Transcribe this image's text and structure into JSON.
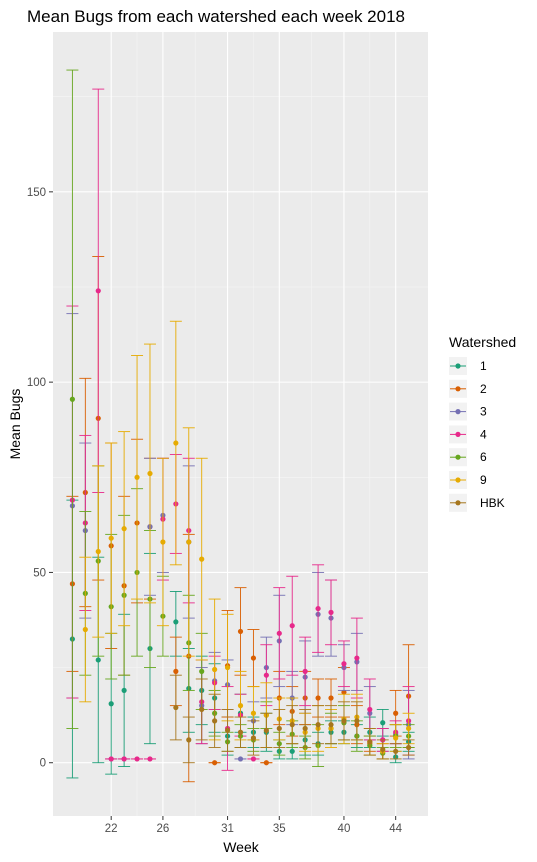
{
  "chart_data": {
    "type": "scatter",
    "title": "Mean Bugs from each watershed each week 2018",
    "xlabel": "Week",
    "ylabel": "Mean Bugs",
    "xlim": [
      17.5,
      46.5
    ],
    "ylim": [
      -14,
      192
    ],
    "x_ticks": [
      22,
      26,
      31,
      35,
      40,
      44
    ],
    "y_ticks": [
      0,
      50,
      100,
      150
    ],
    "grid": true,
    "legend": {
      "title": "Watershed",
      "position": "right"
    },
    "series": [
      {
        "name": "1",
        "color": "#1B9E77",
        "points": [
          {
            "x": 19,
            "y": 32.5,
            "lo": -4,
            "hi": 69
          },
          {
            "x": 21,
            "y": 27,
            "lo": 0,
            "hi": 54
          },
          {
            "x": 22,
            "y": 15.5,
            "lo": -3,
            "hi": 34
          },
          {
            "x": 23,
            "y": 19,
            "lo": -1,
            "hi": 39
          },
          {
            "x": 25,
            "y": 30,
            "lo": 5,
            "hi": 55
          },
          {
            "x": 27,
            "y": 37,
            "lo": 28,
            "hi": 45
          },
          {
            "x": 28,
            "y": 19.5,
            "lo": 8,
            "hi": 30
          },
          {
            "x": 29,
            "y": 19,
            "lo": 10,
            "hi": 28
          },
          {
            "x": 30,
            "y": 17,
            "lo": 8,
            "hi": 26
          },
          {
            "x": 31,
            "y": 7,
            "lo": 2,
            "hi": 12
          },
          {
            "x": 32,
            "y": 13,
            "lo": 8,
            "hi": 18
          },
          {
            "x": 33,
            "y": 8,
            "lo": 4,
            "hi": 12
          },
          {
            "x": 34,
            "y": 8,
            "lo": 3,
            "hi": 13
          },
          {
            "x": 35,
            "y": 3,
            "lo": 1,
            "hi": 6
          },
          {
            "x": 36,
            "y": 3,
            "lo": 1,
            "hi": 5
          },
          {
            "x": 37,
            "y": 6,
            "lo": 2,
            "hi": 10
          },
          {
            "x": 38,
            "y": 5,
            "lo": 2,
            "hi": 8
          },
          {
            "x": 39,
            "y": 8,
            "lo": 5,
            "hi": 11
          },
          {
            "x": 40,
            "y": 8,
            "lo": 5,
            "hi": 11
          },
          {
            "x": 41,
            "y": 7,
            "lo": 4,
            "hi": 10
          },
          {
            "x": 42,
            "y": 8,
            "lo": 4,
            "hi": 12
          },
          {
            "x": 43,
            "y": 10.5,
            "lo": 7,
            "hi": 14
          },
          {
            "x": 44,
            "y": 1.5,
            "lo": 0,
            "hi": 3
          },
          {
            "x": 45,
            "y": 5.5,
            "lo": 3,
            "hi": 8
          }
        ]
      },
      {
        "name": "2",
        "color": "#D95F02",
        "points": [
          {
            "x": 19,
            "y": 47,
            "lo": 24,
            "hi": 70
          },
          {
            "x": 20,
            "y": 71,
            "lo": 41,
            "hi": 101
          },
          {
            "x": 21,
            "y": 90.5,
            "lo": 48,
            "hi": 133
          },
          {
            "x": 22,
            "y": 57,
            "lo": 30,
            "hi": 84
          },
          {
            "x": 23,
            "y": 46.5,
            "lo": 23,
            "hi": 70
          },
          {
            "x": 24,
            "y": 63,
            "lo": 42,
            "hi": 85
          },
          {
            "x": 25,
            "y": 62,
            "lo": 43,
            "hi": 80
          },
          {
            "x": 27,
            "y": 24,
            "lo": 15,
            "hi": 33
          },
          {
            "x": 28,
            "y": 28,
            "lo": -5,
            "hi": 60
          },
          {
            "x": 30,
            "y": 0,
            "lo": 0,
            "hi": 0
          },
          {
            "x": 31,
            "y": 25.5,
            "lo": 12,
            "hi": 40
          },
          {
            "x": 32,
            "y": 34.5,
            "lo": 23,
            "hi": 46
          },
          {
            "x": 33,
            "y": 27.5,
            "lo": 20,
            "hi": 35
          },
          {
            "x": 34,
            "y": 0,
            "lo": 0,
            "hi": 0
          },
          {
            "x": 35,
            "y": 17,
            "lo": 10,
            "hi": 24
          },
          {
            "x": 36,
            "y": 13.5,
            "lo": 7,
            "hi": 20
          },
          {
            "x": 37,
            "y": 17,
            "lo": 10,
            "hi": 24
          },
          {
            "x": 38,
            "y": 17,
            "lo": 12,
            "hi": 22
          },
          {
            "x": 39,
            "y": 17,
            "lo": 12,
            "hi": 22
          },
          {
            "x": 40,
            "y": 18.5,
            "lo": 12,
            "hi": 25
          },
          {
            "x": 41,
            "y": 10,
            "lo": 5,
            "hi": 15
          },
          {
            "x": 42,
            "y": 5,
            "lo": 3,
            "hi": 7
          },
          {
            "x": 43,
            "y": 3,
            "lo": 1,
            "hi": 5
          },
          {
            "x": 44,
            "y": 13,
            "lo": 7,
            "hi": 19
          },
          {
            "x": 45,
            "y": 17.5,
            "lo": 4,
            "hi": 31
          }
        ]
      },
      {
        "name": "3",
        "color": "#7570B3",
        "points": [
          {
            "x": 19,
            "y": 67.5,
            "lo": 17,
            "hi": 118
          },
          {
            "x": 20,
            "y": 61,
            "lo": 38,
            "hi": 84
          },
          {
            "x": 22,
            "y": 1,
            "lo": 1,
            "hi": 1
          },
          {
            "x": 23,
            "y": 1,
            "lo": 1,
            "hi": 1
          },
          {
            "x": 25,
            "y": 62,
            "lo": 44,
            "hi": 80
          },
          {
            "x": 26,
            "y": 65,
            "lo": 50,
            "hi": 80
          },
          {
            "x": 28,
            "y": 58,
            "lo": 38,
            "hi": 78
          },
          {
            "x": 29,
            "y": 15,
            "lo": 5,
            "hi": 25
          },
          {
            "x": 30,
            "y": 21.5,
            "lo": 14,
            "hi": 29
          },
          {
            "x": 31,
            "y": 20.5,
            "lo": 14,
            "hi": 27
          },
          {
            "x": 32,
            "y": 1,
            "lo": 1,
            "hi": 1
          },
          {
            "x": 33,
            "y": 11,
            "lo": 6,
            "hi": 16
          },
          {
            "x": 34,
            "y": 25,
            "lo": 17,
            "hi": 33
          },
          {
            "x": 35,
            "y": 32,
            "lo": 20,
            "hi": 44
          },
          {
            "x": 36,
            "y": 17,
            "lo": 10,
            "hi": 24
          },
          {
            "x": 37,
            "y": 22.5,
            "lo": 13,
            "hi": 32
          },
          {
            "x": 38,
            "y": 39,
            "lo": 28,
            "hi": 50
          },
          {
            "x": 39,
            "y": 38,
            "lo": 28,
            "hi": 48
          },
          {
            "x": 40,
            "y": 25,
            "lo": 19,
            "hi": 31
          },
          {
            "x": 41,
            "y": 26.5,
            "lo": 19,
            "hi": 34
          },
          {
            "x": 42,
            "y": 13,
            "lo": 6,
            "hi": 20
          },
          {
            "x": 43,
            "y": 6,
            "lo": 3,
            "hi": 9
          },
          {
            "x": 44,
            "y": 7.5,
            "lo": 5,
            "hi": 10
          },
          {
            "x": 45,
            "y": 10,
            "lo": 1,
            "hi": 19
          }
        ]
      },
      {
        "name": "4",
        "color": "#E7298A",
        "points": [
          {
            "x": 19,
            "y": 69,
            "lo": 17,
            "hi": 120
          },
          {
            "x": 20,
            "y": 63,
            "lo": 40,
            "hi": 86
          },
          {
            "x": 21,
            "y": 124,
            "lo": 71,
            "hi": 177
          },
          {
            "x": 22,
            "y": 1,
            "lo": 1,
            "hi": 1
          },
          {
            "x": 23,
            "y": 1,
            "lo": 1,
            "hi": 1
          },
          {
            "x": 24,
            "y": 1,
            "lo": 1,
            "hi": 1
          },
          {
            "x": 25,
            "y": 1,
            "lo": 1,
            "hi": 1
          },
          {
            "x": 26,
            "y": 64,
            "lo": 48,
            "hi": 80
          },
          {
            "x": 27,
            "y": 68,
            "lo": 55,
            "hi": 81
          },
          {
            "x": 28,
            "y": 61,
            "lo": 42,
            "hi": 80
          },
          {
            "x": 29,
            "y": 16,
            "lo": 5,
            "hi": 27
          },
          {
            "x": 30,
            "y": 21,
            "lo": 14,
            "hi": 28
          },
          {
            "x": 31,
            "y": 9,
            "lo": -2,
            "hi": 20
          },
          {
            "x": 32,
            "y": 12.5,
            "lo": 7,
            "hi": 18
          },
          {
            "x": 33,
            "y": 1,
            "lo": 1,
            "hi": 1
          },
          {
            "x": 34,
            "y": 23,
            "lo": 15,
            "hi": 31
          },
          {
            "x": 35,
            "y": 34,
            "lo": 22,
            "hi": 46
          },
          {
            "x": 36,
            "y": 36,
            "lo": 23,
            "hi": 49
          },
          {
            "x": 37,
            "y": 24,
            "lo": 15,
            "hi": 33
          },
          {
            "x": 38,
            "y": 40.5,
            "lo": 29,
            "hi": 52
          },
          {
            "x": 39,
            "y": 39.5,
            "lo": 31,
            "hi": 48
          },
          {
            "x": 40,
            "y": 26,
            "lo": 20,
            "hi": 32
          },
          {
            "x": 41,
            "y": 27.5,
            "lo": 17,
            "hi": 38
          },
          {
            "x": 42,
            "y": 14,
            "lo": 6,
            "hi": 22
          },
          {
            "x": 43,
            "y": 6,
            "lo": 3,
            "hi": 9
          },
          {
            "x": 44,
            "y": 8,
            "lo": 5,
            "hi": 11
          },
          {
            "x": 45,
            "y": 11,
            "lo": 2,
            "hi": 20
          }
        ]
      },
      {
        "name": "6",
        "color": "#66A61E",
        "points": [
          {
            "x": 19,
            "y": 95.5,
            "lo": 9,
            "hi": 182
          },
          {
            "x": 20,
            "y": 44.5,
            "lo": 23,
            "hi": 66
          },
          {
            "x": 21,
            "y": 53,
            "lo": 28,
            "hi": 78
          },
          {
            "x": 22,
            "y": 41,
            "lo": 22,
            "hi": 60
          },
          {
            "x": 23,
            "y": 44,
            "lo": 23,
            "hi": 65
          },
          {
            "x": 24,
            "y": 50,
            "lo": 28,
            "hi": 72
          },
          {
            "x": 25,
            "y": 43,
            "lo": 25,
            "hi": 61
          },
          {
            "x": 26,
            "y": 38.5,
            "lo": 28,
            "hi": 49
          },
          {
            "x": 28,
            "y": 31.5,
            "lo": 19,
            "hi": 44
          },
          {
            "x": 29,
            "y": 24,
            "lo": 14,
            "hi": 34
          },
          {
            "x": 30,
            "y": 13,
            "lo": 7,
            "hi": 19
          },
          {
            "x": 31,
            "y": 5.5,
            "lo": 3,
            "hi": 8
          },
          {
            "x": 32,
            "y": 7,
            "lo": 4,
            "hi": 10
          },
          {
            "x": 33,
            "y": 6,
            "lo": 3,
            "hi": 9
          },
          {
            "x": 34,
            "y": 12.5,
            "lo": 9,
            "hi": 16
          },
          {
            "x": 35,
            "y": 5,
            "lo": 2,
            "hi": 8
          },
          {
            "x": 36,
            "y": 7.5,
            "lo": 4,
            "hi": 11
          },
          {
            "x": 37,
            "y": 4,
            "lo": 1,
            "hi": 7
          },
          {
            "x": 38,
            "y": 4.5,
            "lo": -1,
            "hi": 10
          },
          {
            "x": 39,
            "y": 9,
            "lo": 5,
            "hi": 13
          },
          {
            "x": 40,
            "y": 10.5,
            "lo": 6,
            "hi": 15
          },
          {
            "x": 41,
            "y": 7,
            "lo": 3,
            "hi": 11
          },
          {
            "x": 42,
            "y": 4.5,
            "lo": 2,
            "hi": 7
          },
          {
            "x": 43,
            "y": 2.5,
            "lo": 1,
            "hi": 4
          },
          {
            "x": 44,
            "y": 7,
            "lo": 4,
            "hi": 10
          },
          {
            "x": 45,
            "y": 7,
            "lo": 4,
            "hi": 10
          }
        ]
      },
      {
        "name": "9",
        "color": "#E6AB02",
        "points": [
          {
            "x": 20,
            "y": 35,
            "lo": 16,
            "hi": 54
          },
          {
            "x": 21,
            "y": 55.5,
            "lo": 33,
            "hi": 78
          },
          {
            "x": 22,
            "y": 59,
            "lo": 34,
            "hi": 84
          },
          {
            "x": 23,
            "y": 61.5,
            "lo": 36,
            "hi": 87
          },
          {
            "x": 24,
            "y": 75,
            "lo": 43,
            "hi": 107
          },
          {
            "x": 25,
            "y": 76,
            "lo": 42,
            "hi": 110
          },
          {
            "x": 26,
            "y": 58,
            "lo": 36,
            "hi": 80
          },
          {
            "x": 27,
            "y": 84,
            "lo": 52,
            "hi": 116
          },
          {
            "x": 28,
            "y": 58,
            "lo": 28,
            "hi": 88
          },
          {
            "x": 29,
            "y": 53.5,
            "lo": 27,
            "hi": 80
          },
          {
            "x": 30,
            "y": 24.5,
            "lo": 6,
            "hi": 43
          },
          {
            "x": 31,
            "y": 25,
            "lo": 11,
            "hi": 39
          },
          {
            "x": 32,
            "y": 15,
            "lo": 6,
            "hi": 24
          },
          {
            "x": 33,
            "y": 13,
            "lo": 6,
            "hi": 20
          },
          {
            "x": 34,
            "y": 12.5,
            "lo": 4,
            "hi": 21
          },
          {
            "x": 35,
            "y": 11.5,
            "lo": 6,
            "hi": 17
          },
          {
            "x": 36,
            "y": 11,
            "lo": 5,
            "hi": 17
          },
          {
            "x": 37,
            "y": 8,
            "lo": 3,
            "hi": 13
          },
          {
            "x": 38,
            "y": 9,
            "lo": 3,
            "hi": 15
          },
          {
            "x": 39,
            "y": 9,
            "lo": 4,
            "hi": 14
          },
          {
            "x": 40,
            "y": 11.5,
            "lo": 5,
            "hi": 18
          },
          {
            "x": 41,
            "y": 12,
            "lo": 6,
            "hi": 18
          },
          {
            "x": 42,
            "y": 5.5,
            "lo": 2,
            "hi": 9
          },
          {
            "x": 43,
            "y": 3,
            "lo": 1,
            "hi": 5
          },
          {
            "x": 44,
            "y": 6.5,
            "lo": 3,
            "hi": 10
          },
          {
            "x": 45,
            "y": 9,
            "lo": 5,
            "hi": 13
          }
        ]
      },
      {
        "name": "HBK",
        "color": "#A6761D",
        "points": [
          {
            "x": 27,
            "y": 14.5,
            "lo": 6,
            "hi": 23
          },
          {
            "x": 28,
            "y": 6,
            "lo": 0,
            "hi": 12
          },
          {
            "x": 29,
            "y": 14,
            "lo": 6,
            "hi": 22
          },
          {
            "x": 30,
            "y": 11,
            "lo": 4,
            "hi": 18
          },
          {
            "x": 31,
            "y": 8.5,
            "lo": 3,
            "hi": 14
          },
          {
            "x": 32,
            "y": 8,
            "lo": 4,
            "hi": 12
          },
          {
            "x": 33,
            "y": 6.5,
            "lo": 2,
            "hi": 11
          },
          {
            "x": 34,
            "y": 8.5,
            "lo": 4,
            "hi": 13
          },
          {
            "x": 35,
            "y": 9,
            "lo": 4,
            "hi": 14
          },
          {
            "x": 36,
            "y": 10,
            "lo": 5,
            "hi": 15
          },
          {
            "x": 37,
            "y": 9,
            "lo": 4,
            "hi": 14
          },
          {
            "x": 38,
            "y": 10,
            "lo": 5,
            "hi": 15
          },
          {
            "x": 39,
            "y": 10,
            "lo": 5,
            "hi": 15
          },
          {
            "x": 40,
            "y": 11,
            "lo": 6,
            "hi": 16
          },
          {
            "x": 41,
            "y": 11,
            "lo": 6,
            "hi": 16
          },
          {
            "x": 42,
            "y": 5.5,
            "lo": 2,
            "hi": 9
          },
          {
            "x": 43,
            "y": 3.5,
            "lo": 1,
            "hi": 6
          },
          {
            "x": 44,
            "y": 3,
            "lo": 1,
            "hi": 5
          },
          {
            "x": 45,
            "y": 4,
            "lo": 2,
            "hi": 6
          }
        ]
      }
    ]
  }
}
